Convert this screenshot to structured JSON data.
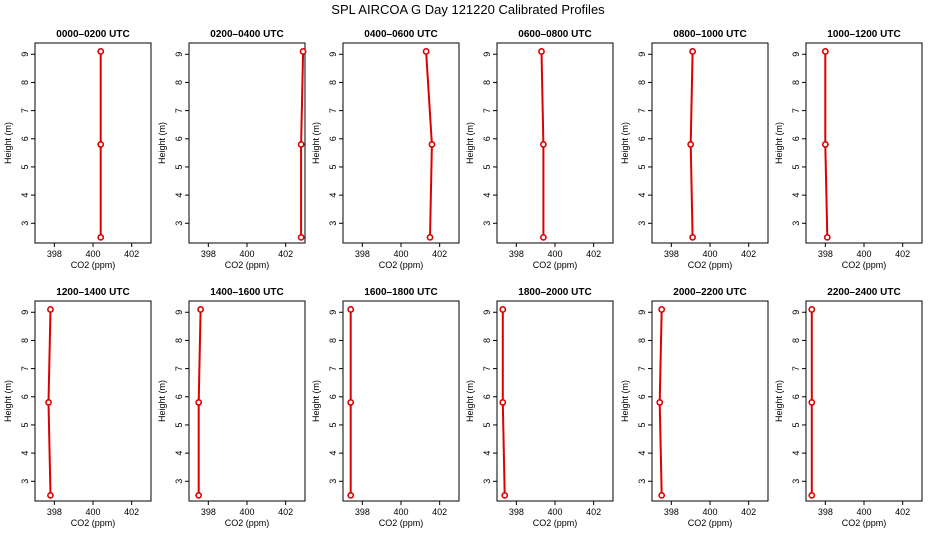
{
  "title": "SPL AIRCOA G  Day 121220  Calibrated Profiles",
  "chart_data": [
    {
      "type": "line",
      "title": "0000–0200 UTC",
      "xlabel": "CO2 (ppm)",
      "ylabel": "Height (m)",
      "xlim": [
        397,
        403
      ],
      "ylim": [
        2.3,
        9.4
      ],
      "xticks": [
        398,
        400,
        402
      ],
      "yticks": [
        3,
        4,
        5,
        6,
        7,
        8,
        9
      ],
      "grid": false,
      "series": [
        {
          "x": [
            400.4,
            400.4,
            400.4
          ],
          "y": [
            2.5,
            5.8,
            9.1
          ]
        }
      ]
    },
    {
      "type": "line",
      "title": "0200–0400 UTC",
      "xlabel": "CO2 (ppm)",
      "ylabel": "Height (m)",
      "xlim": [
        397,
        403
      ],
      "ylim": [
        2.3,
        9.4
      ],
      "xticks": [
        398,
        400,
        402
      ],
      "yticks": [
        3,
        4,
        5,
        6,
        7,
        8,
        9
      ],
      "grid": false,
      "series": [
        {
          "x": [
            402.8,
            402.8,
            402.9
          ],
          "y": [
            2.5,
            5.8,
            9.1
          ]
        }
      ]
    },
    {
      "type": "line",
      "title": "0400–0600 UTC",
      "xlabel": "CO2 (ppm)",
      "ylabel": "Height (m)",
      "xlim": [
        397,
        403
      ],
      "ylim": [
        2.3,
        9.4
      ],
      "xticks": [
        398,
        400,
        402
      ],
      "yticks": [
        3,
        4,
        5,
        6,
        7,
        8,
        9
      ],
      "grid": false,
      "series": [
        {
          "x": [
            401.5,
            401.6,
            401.3
          ],
          "y": [
            2.5,
            5.8,
            9.1
          ]
        }
      ]
    },
    {
      "type": "line",
      "title": "0600–0800 UTC",
      "xlabel": "CO2 (ppm)",
      "ylabel": "Height (m)",
      "xlim": [
        397,
        403
      ],
      "ylim": [
        2.3,
        9.4
      ],
      "xticks": [
        398,
        400,
        402
      ],
      "yticks": [
        3,
        4,
        5,
        6,
        7,
        8,
        9
      ],
      "grid": false,
      "series": [
        {
          "x": [
            399.4,
            399.4,
            399.3
          ],
          "y": [
            2.5,
            5.8,
            9.1
          ]
        }
      ]
    },
    {
      "type": "line",
      "title": "0800–1000 UTC",
      "xlabel": "CO2 (ppm)",
      "ylabel": "Height (m)",
      "xlim": [
        397,
        403
      ],
      "ylim": [
        2.3,
        9.4
      ],
      "xticks": [
        398,
        400,
        402
      ],
      "yticks": [
        3,
        4,
        5,
        6,
        7,
        8,
        9
      ],
      "grid": false,
      "series": [
        {
          "x": [
            399.1,
            399.0,
            399.1
          ],
          "y": [
            2.5,
            5.8,
            9.1
          ]
        }
      ]
    },
    {
      "type": "line",
      "title": "1000–1200 UTC",
      "xlabel": "CO2 (ppm)",
      "ylabel": "Height (m)",
      "xlim": [
        397,
        403
      ],
      "ylim": [
        2.3,
        9.4
      ],
      "xticks": [
        398,
        400,
        402
      ],
      "yticks": [
        3,
        4,
        5,
        6,
        7,
        8,
        9
      ],
      "grid": false,
      "series": [
        {
          "x": [
            398.1,
            398.0,
            398.0
          ],
          "y": [
            2.5,
            5.8,
            9.1
          ]
        }
      ]
    },
    {
      "type": "line",
      "title": "1200–1400 UTC",
      "xlabel": "CO2 (ppm)",
      "ylabel": "Height (m)",
      "xlim": [
        397,
        403
      ],
      "ylim": [
        2.3,
        9.4
      ],
      "xticks": [
        398,
        400,
        402
      ],
      "yticks": [
        3,
        4,
        5,
        6,
        7,
        8,
        9
      ],
      "grid": false,
      "series": [
        {
          "x": [
            397.8,
            397.7,
            397.8
          ],
          "y": [
            2.5,
            5.8,
            9.1
          ]
        }
      ]
    },
    {
      "type": "line",
      "title": "1400–1600 UTC",
      "xlabel": "CO2 (ppm)",
      "ylabel": "Height (m)",
      "xlim": [
        397,
        403
      ],
      "ylim": [
        2.3,
        9.4
      ],
      "xticks": [
        398,
        400,
        402
      ],
      "yticks": [
        3,
        4,
        5,
        6,
        7,
        8,
        9
      ],
      "grid": false,
      "series": [
        {
          "x": [
            397.5,
            397.5,
            397.6
          ],
          "y": [
            2.5,
            5.8,
            9.1
          ]
        }
      ]
    },
    {
      "type": "line",
      "title": "1600–1800 UTC",
      "xlabel": "CO2 (ppm)",
      "ylabel": "Height (m)",
      "xlim": [
        397,
        403
      ],
      "ylim": [
        2.3,
        9.4
      ],
      "xticks": [
        398,
        400,
        402
      ],
      "yticks": [
        3,
        4,
        5,
        6,
        7,
        8,
        9
      ],
      "grid": false,
      "series": [
        {
          "x": [
            397.4,
            397.4,
            397.4
          ],
          "y": [
            2.5,
            5.8,
            9.1
          ]
        }
      ]
    },
    {
      "type": "line",
      "title": "1800–2000 UTC",
      "xlabel": "CO2 (ppm)",
      "ylabel": "Height (m)",
      "xlim": [
        397,
        403
      ],
      "ylim": [
        2.3,
        9.4
      ],
      "xticks": [
        398,
        400,
        402
      ],
      "yticks": [
        3,
        4,
        5,
        6,
        7,
        8,
        9
      ],
      "grid": false,
      "series": [
        {
          "x": [
            397.4,
            397.3,
            397.3
          ],
          "y": [
            2.5,
            5.8,
            9.1
          ]
        }
      ]
    },
    {
      "type": "line",
      "title": "2000–2200 UTC",
      "xlabel": "CO2 (ppm)",
      "ylabel": "Height (m)",
      "xlim": [
        397,
        403
      ],
      "ylim": [
        2.3,
        9.4
      ],
      "xticks": [
        398,
        400,
        402
      ],
      "yticks": [
        3,
        4,
        5,
        6,
        7,
        8,
        9
      ],
      "grid": false,
      "series": [
        {
          "x": [
            397.5,
            397.4,
            397.5
          ],
          "y": [
            2.5,
            5.8,
            9.1
          ]
        }
      ]
    },
    {
      "type": "line",
      "title": "2200–2400 UTC",
      "xlabel": "CO2 (ppm)",
      "ylabel": "Height (m)",
      "xlim": [
        397,
        403
      ],
      "ylim": [
        2.3,
        9.4
      ],
      "xticks": [
        398,
        400,
        402
      ],
      "yticks": [
        3,
        4,
        5,
        6,
        7,
        8,
        9
      ],
      "grid": false,
      "series": [
        {
          "x": [
            397.3,
            397.3,
            397.3
          ],
          "y": [
            2.5,
            5.8,
            9.1
          ]
        }
      ]
    }
  ],
  "colors": {
    "series": "#dd0000",
    "axis": "#000000"
  }
}
